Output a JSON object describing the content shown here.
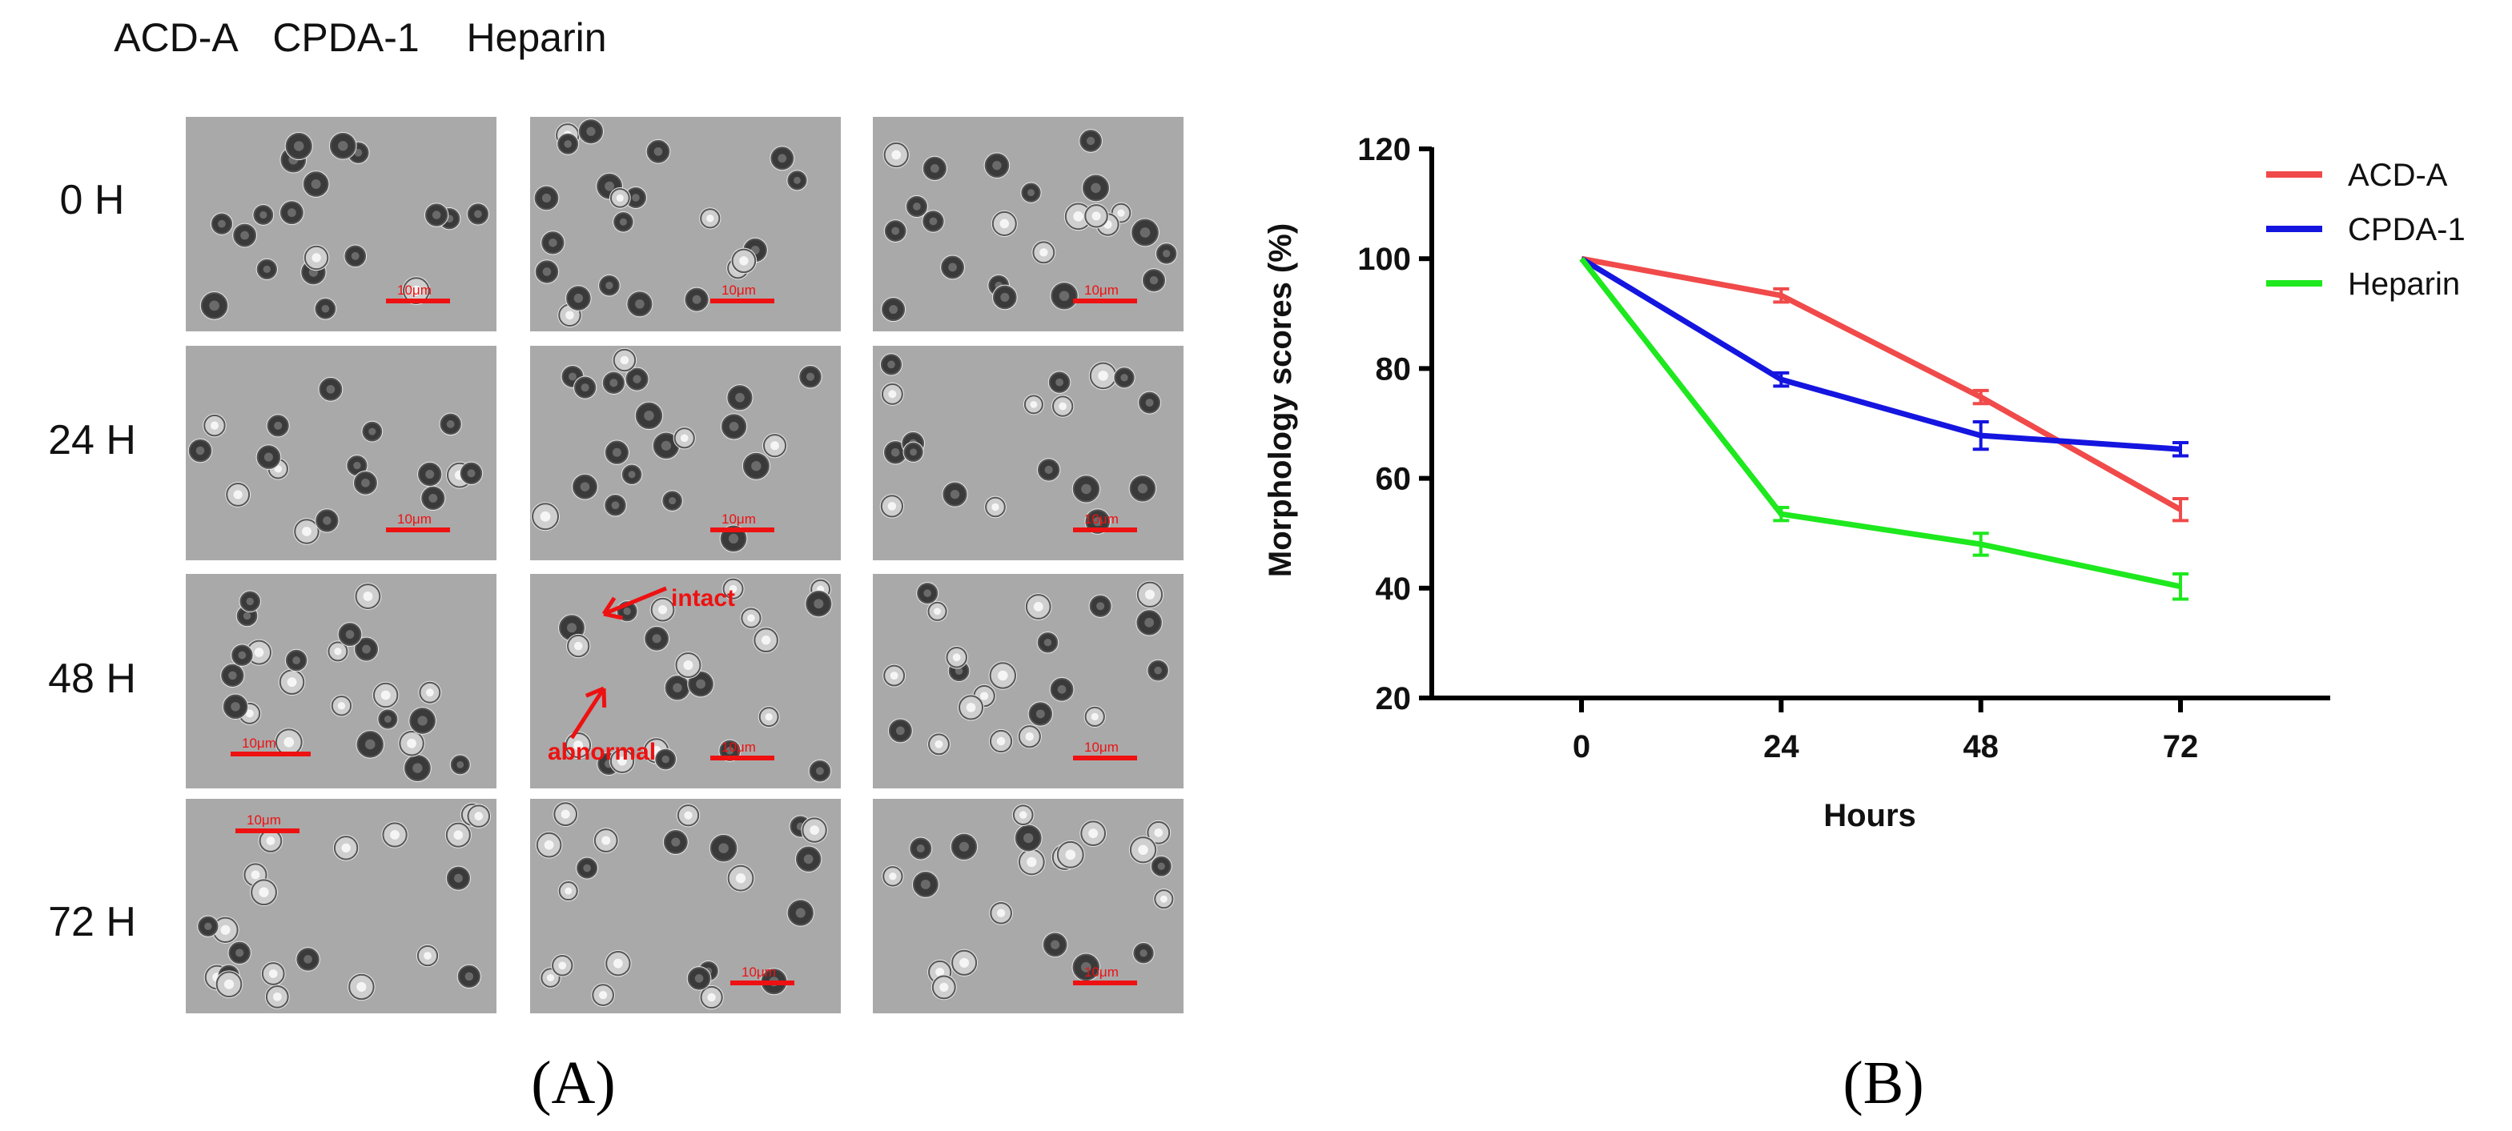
{
  "panel_a": {
    "columns": [
      "ACD-A",
      "CPDA-1",
      "Heparin"
    ],
    "rows": [
      "0  H",
      "24  H",
      "48  H",
      "72  H"
    ],
    "scale_bar": "10μm",
    "annotations": {
      "intact": "intact",
      "abnormal": "abnormal"
    },
    "label": "(A)"
  },
  "panel_b": {
    "label": "(B)"
  },
  "chart_data": {
    "type": "line",
    "title": "",
    "xlabel": "Hours",
    "ylabel": "Morphology scores (%)",
    "x": [
      0,
      24,
      48,
      72
    ],
    "x_ticks": [
      "0",
      "24",
      "48",
      "72"
    ],
    "ylim": [
      20,
      120
    ],
    "y_ticks": [
      "20",
      "40",
      "60",
      "80",
      "100",
      "120"
    ],
    "legend_position": "top-right",
    "series": [
      {
        "name": "ACD-A",
        "color": "#f04a4a",
        "values": [
          100,
          93.3,
          74.8,
          54.3
        ],
        "errors": [
          0.5,
          1.2,
          1.2,
          2.0
        ]
      },
      {
        "name": "CPDA-1",
        "color": "#1515e0",
        "values": [
          100,
          78.0,
          67.8,
          65.3
        ],
        "errors": [
          0.5,
          1.2,
          2.5,
          1.2
        ]
      },
      {
        "name": "Heparin",
        "color": "#1ee81e",
        "values": [
          100,
          53.5,
          48.0,
          40.3
        ],
        "errors": [
          0.5,
          1.2,
          2.0,
          2.3
        ]
      }
    ]
  }
}
